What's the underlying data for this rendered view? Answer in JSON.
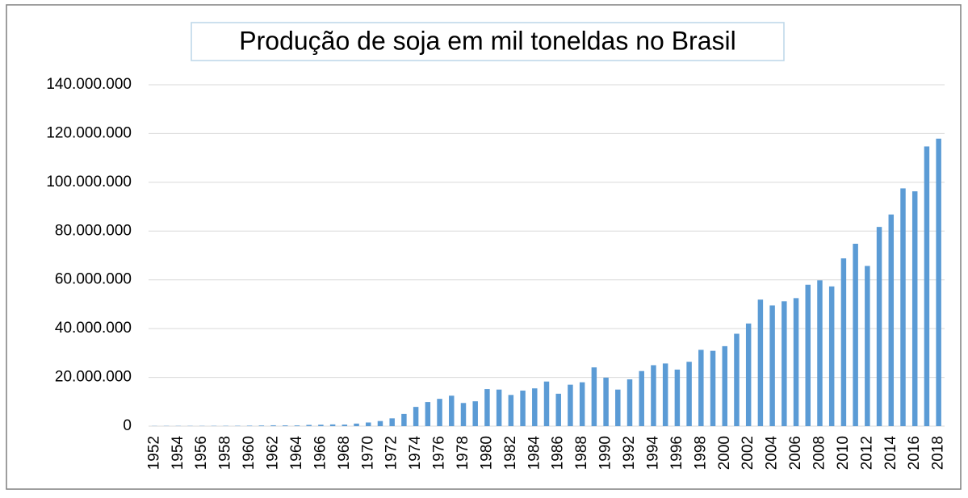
{
  "chart_data": {
    "type": "bar",
    "title": "Produção de soja em mil toneldas no Brasil",
    "categories": [
      "1952",
      null,
      "1954",
      null,
      "1956",
      null,
      "1958",
      null,
      "1960",
      null,
      "1962",
      null,
      "1964",
      null,
      "1966",
      null,
      "1968",
      null,
      "1970",
      null,
      "1972",
      null,
      "1974",
      null,
      "1976",
      null,
      "1978",
      null,
      "1980",
      null,
      "1982",
      null,
      "1984",
      null,
      "1986",
      null,
      "1988",
      null,
      "1990",
      null,
      "1992",
      null,
      "1994",
      null,
      "1996",
      null,
      "1998",
      null,
      "2000",
      null,
      "2002",
      null,
      "2004",
      null,
      "2006",
      null,
      "2008",
      null,
      "2010",
      null,
      "2012",
      null,
      "2014",
      null,
      "2016",
      null,
      "2018"
    ],
    "values": [
      80000,
      100000,
      100000,
      100000,
      100000,
      120000,
      130000,
      150000,
      200000,
      270000,
      350000,
      320000,
      300000,
      520000,
      600000,
      720000,
      650000,
      1060000,
      1500000,
      2100000,
      3200000,
      5000000,
      7900000,
      9900000,
      11200000,
      12500000,
      9500000,
      10200000,
      15200000,
      15000000,
      12800000,
      14600000,
      15500000,
      18300000,
      13300000,
      17000000,
      18000000,
      24100000,
      19900000,
      15000000,
      19200000,
      22600000,
      25000000,
      25700000,
      23200000,
      26400000,
      31300000,
      30900000,
      32800000,
      37900000,
      42100000,
      51900000,
      49500000,
      51200000,
      52500000,
      58000000,
      59800000,
      57300000,
      68800000,
      74800000,
      65700000,
      81700000,
      86800000,
      97500000,
      96300000,
      114700000,
      117900000
    ],
    "color": "#5b9bd5",
    "ylim": [
      0,
      140000000
    ],
    "yticks": [
      0,
      {
        "value": 20000000,
        "label": "20.000.000"
      },
      {
        "value": 40000000,
        "label": "40.000.000"
      },
      {
        "value": 60000000,
        "label": "60.000.000"
      },
      {
        "value": 80000000,
        "label": "80.000.000"
      },
      {
        "value": 100000000,
        "label": "100.000.000"
      },
      {
        "value": 120000000,
        "label": "120.000.000"
      },
      {
        "value": 140000000,
        "label": "140.000.000"
      }
    ],
    "grid": true
  }
}
